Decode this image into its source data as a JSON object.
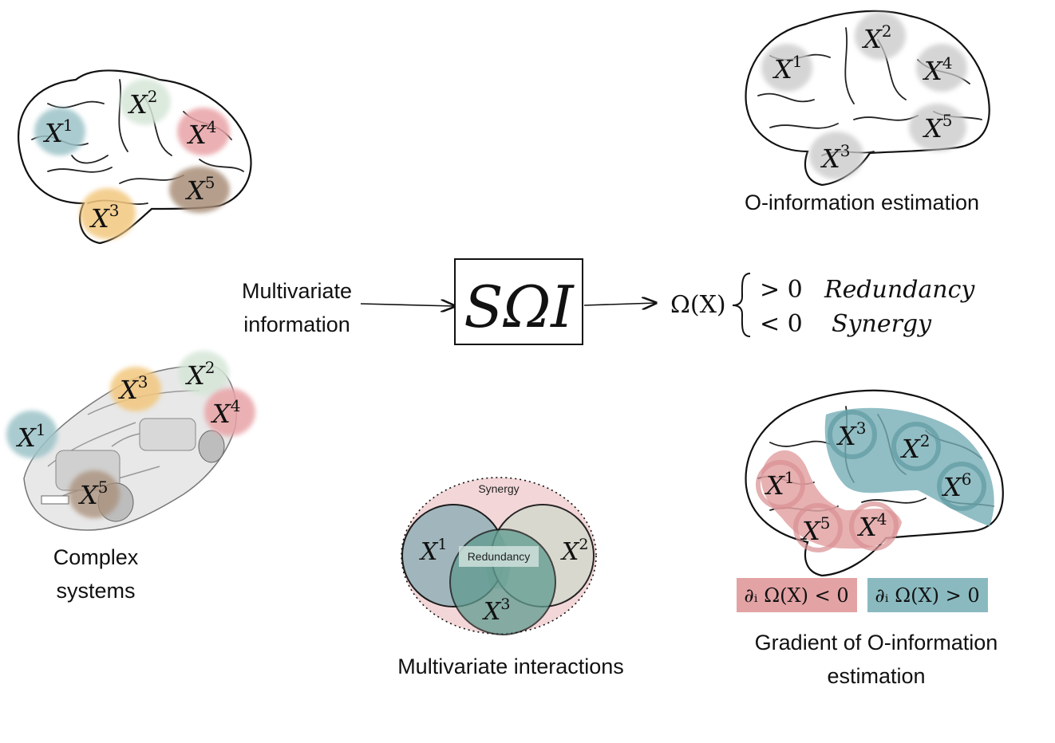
{
  "captions": {
    "complex_systems_line1": "Complex",
    "complex_systems_line2": "systems",
    "multivariate_info_line1": "Multivariate",
    "multivariate_info_line2": "information",
    "o_info_estimation": "O-information estimation",
    "multivariate_interactions": "Multivariate interactions",
    "gradient_line1": "Gradient of O-information",
    "gradient_line2": "estimation"
  },
  "center_box": {
    "label": "SΩI"
  },
  "omega_definition": {
    "lhs": "Ω(X)",
    "case_positive": "> 0",
    "case_positive_label": "Redundancy",
    "case_negative": "< 0",
    "case_negative_label": "Synergy"
  },
  "variables": {
    "x1": "X",
    "s1": "1",
    "x2": "X",
    "s2": "2",
    "x3": "X",
    "s3": "3",
    "x4": "X",
    "s4": "4",
    "x5": "X",
    "s5": "5",
    "x6": "X",
    "s6": "6"
  },
  "venn": {
    "synergy_label": "Synergy",
    "redundancy_label": "Redundancy"
  },
  "gradient_legend": {
    "negative": "∂ᵢ Ω(X) < 0",
    "positive": "∂ᵢ Ω(X) > 0"
  },
  "colors": {
    "blue": "#9cc3c8",
    "green": "#d6e6d8",
    "red": "#e8a3a6",
    "orange": "#f2c77e",
    "brown": "#a98e78",
    "gray": "#c8c8c8",
    "venn_blue": "#9cb5bb",
    "venn_gray": "#d6d9cf",
    "venn_teal": "#5f9b8f",
    "synergy_pink": "#f3d7d8",
    "grad_blue": "#76aeb5",
    "grad_red": "#e3a3a5"
  }
}
